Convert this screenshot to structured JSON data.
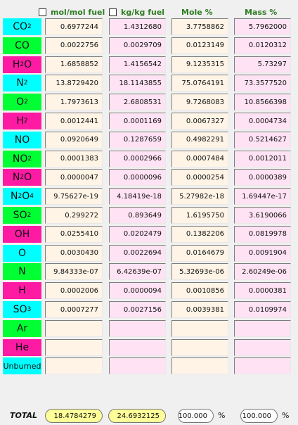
{
  "headers": {
    "mol": "mol/mol fuel",
    "kg": "kg/kg fuel",
    "mole_pct": "Mole %",
    "mass_pct": "Mass %"
  },
  "colors": {
    "cyan": "#00ffff",
    "green": "#00ff33",
    "magenta": "#ff1aa3",
    "total_yellow": "#ffff99"
  },
  "rows": [
    {
      "species": "CO",
      "sub": "2",
      "tail": "",
      "color": "#00ffff",
      "mol": "0.6977244",
      "kg": "1.4312680",
      "mole_pct": "3.7758862",
      "mass_pct": "5.7962000"
    },
    {
      "species": "CO",
      "sub": "",
      "tail": "",
      "color": "#00ff33",
      "mol": "0.0022756",
      "kg": "0.0029709",
      "mole_pct": "0.0123149",
      "mass_pct": "0.0120312"
    },
    {
      "species": "H",
      "sub": "2",
      "tail": "O",
      "color": "#ff1aa3",
      "mol": "1.6858852",
      "kg": "1.4156542",
      "mole_pct": "9.1235315",
      "mass_pct": "5.73297"
    },
    {
      "species": "N",
      "sub": "2",
      "tail": "",
      "color": "#00ffff",
      "mol": "13.8729420",
      "kg": "18.1143855",
      "mole_pct": "75.0764191",
      "mass_pct": "73.3577520"
    },
    {
      "species": "O",
      "sub": "2",
      "tail": "",
      "color": "#00ff33",
      "mol": "1.7973613",
      "kg": "2.6808531",
      "mole_pct": "9.7268083",
      "mass_pct": "10.8566398"
    },
    {
      "species": "H",
      "sub": "2",
      "tail": "",
      "color": "#ff1aa3",
      "mol": "0.0012441",
      "kg": "0.0001169",
      "mole_pct": "0.0067327",
      "mass_pct": "0.0004734"
    },
    {
      "species": "NO",
      "sub": "",
      "tail": "",
      "color": "#00ffff",
      "mol": "0.0920649",
      "kg": "0.1287659",
      "mole_pct": "0.4982291",
      "mass_pct": "0.5214627"
    },
    {
      "species": "NO",
      "sub": "2",
      "tail": "",
      "color": "#00ff33",
      "mol": "0.0001383",
      "kg": "0.0002966",
      "mole_pct": "0.0007484",
      "mass_pct": "0.0012011"
    },
    {
      "species": "N",
      "sub": "2",
      "tail": "O",
      "color": "#ff1aa3",
      "mol": "0.0000047",
      "kg": "0.0000096",
      "mole_pct": "0.0000254",
      "mass_pct": "0.0000389"
    },
    {
      "species": "N",
      "sub": "2",
      "tail": "O",
      "sub2": "4",
      "color": "#00ffff",
      "mol": "9.75627e-19",
      "kg": "4.18419e-18",
      "mole_pct": "5.27982e-18",
      "mass_pct": "1.69447e-17"
    },
    {
      "species": "SO",
      "sub": "2",
      "tail": "",
      "color": "#00ff33",
      "mol": "0.299272",
      "kg": "0.893649",
      "mole_pct": "1.6195750",
      "mass_pct": "3.6190066"
    },
    {
      "species": "OH",
      "sub": "",
      "tail": "",
      "color": "#ff1aa3",
      "mol": "0.0255410",
      "kg": "0.0202479",
      "mole_pct": "0.1382206",
      "mass_pct": "0.0819978"
    },
    {
      "species": "O",
      "sub": "",
      "tail": "",
      "color": "#00ffff",
      "mol": "0.0030430",
      "kg": "0.0022694",
      "mole_pct": "0.0164679",
      "mass_pct": "0.0091904"
    },
    {
      "species": "N",
      "sub": "",
      "tail": "",
      "color": "#00ff33",
      "mol": "9.84333e-07",
      "kg": "6.42639e-07",
      "mole_pct": "5.32693e-06",
      "mass_pct": "2.60249e-06"
    },
    {
      "species": "H",
      "sub": "",
      "tail": "",
      "color": "#ff1aa3",
      "mol": "0.0002006",
      "kg": "0.0000094",
      "mole_pct": "0.0010856",
      "mass_pct": "0.0000381"
    },
    {
      "species": "SO",
      "sub": "3",
      "tail": "",
      "color": "#00ffff",
      "mol": "0.0007277",
      "kg": "0.0027156",
      "mole_pct": "0.0039381",
      "mass_pct": "0.0109974"
    },
    {
      "species": "Ar",
      "sub": "",
      "tail": "",
      "color": "#00ff33",
      "mol": "",
      "kg": "",
      "mole_pct": "",
      "mass_pct": ""
    },
    {
      "species": "He",
      "sub": "",
      "tail": "",
      "color": "#ff1aa3",
      "mol": "",
      "kg": "",
      "mole_pct": "",
      "mass_pct": ""
    },
    {
      "species": "Unburned",
      "sub": "",
      "tail": "",
      "color": "#00ffff",
      "small": true,
      "mol": "",
      "kg": "",
      "mole_pct": "",
      "mass_pct": ""
    }
  ],
  "total": {
    "label": "TOTAL",
    "mol": "18.4784279",
    "kg": "24.6932125",
    "mole_pct": "100.000",
    "mass_pct": "100.000",
    "pct_sign": "%"
  }
}
